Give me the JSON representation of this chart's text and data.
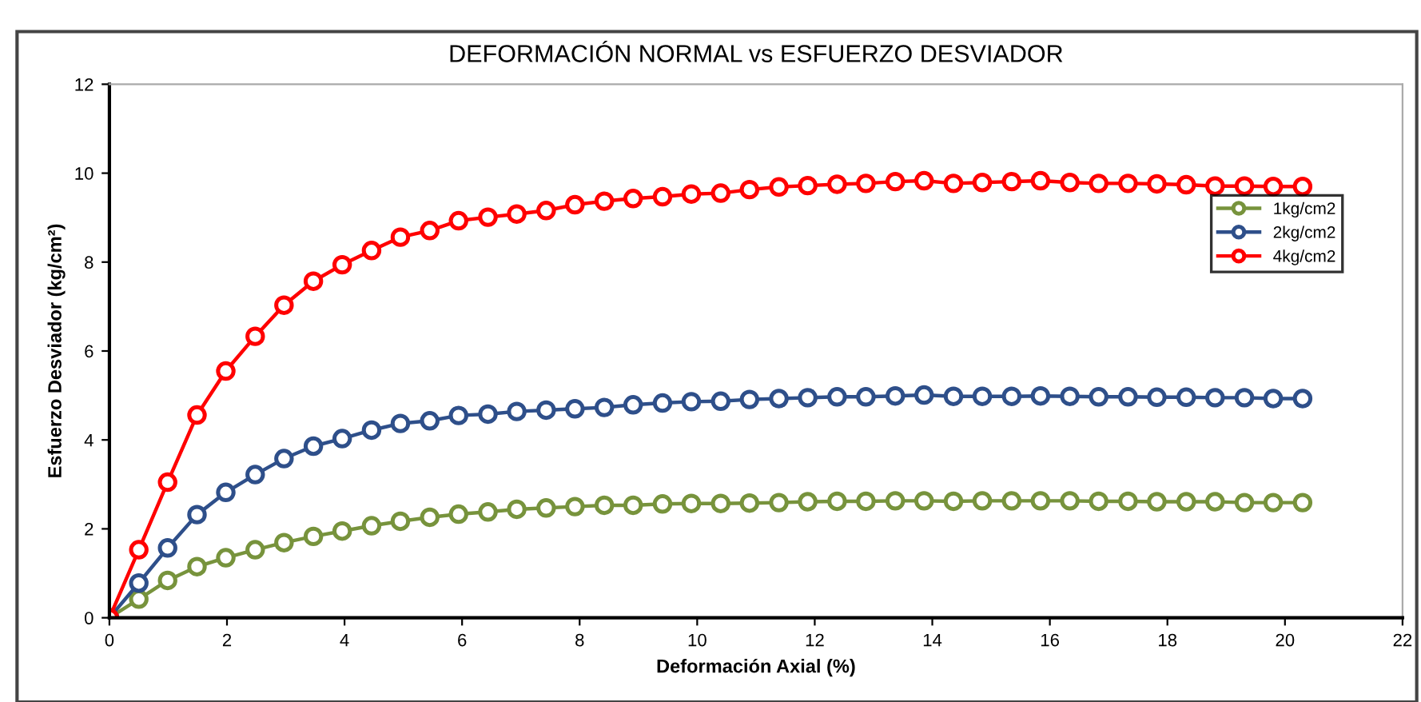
{
  "chart_data": {
    "type": "line",
    "title": "DEFORMACIÓN NORMAL vs ESFUERZO DESVIADOR",
    "xlabel": "Deformación Axial (%)",
    "ylabel": "Esfuerzo Desviador (kg/cm²)",
    "x": [
      0,
      0.5,
      0.99,
      1.49,
      1.98,
      2.48,
      2.97,
      3.47,
      3.96,
      4.46,
      4.95,
      5.45,
      5.94,
      6.44,
      6.93,
      7.43,
      7.92,
      8.42,
      8.91,
      9.41,
      9.9,
      10.4,
      10.89,
      11.39,
      11.88,
      12.38,
      12.87,
      13.37,
      13.86,
      14.36,
      14.85,
      15.35,
      15.84,
      16.34,
      16.83,
      17.33,
      17.82,
      18.32,
      18.81,
      19.31,
      19.8,
      20.3
    ],
    "series": [
      {
        "name": "1kg/cm2",
        "color": "#77933c",
        "values": [
          0,
          0.42,
          0.84,
          1.15,
          1.35,
          1.53,
          1.69,
          1.83,
          1.95,
          2.07,
          2.17,
          2.26,
          2.33,
          2.38,
          2.44,
          2.47,
          2.5,
          2.53,
          2.53,
          2.56,
          2.57,
          2.57,
          2.58,
          2.59,
          2.61,
          2.62,
          2.62,
          2.63,
          2.63,
          2.62,
          2.63,
          2.63,
          2.63,
          2.63,
          2.62,
          2.62,
          2.61,
          2.61,
          2.61,
          2.59,
          2.59,
          2.59
        ]
      },
      {
        "name": "2kg/cm2",
        "color": "#2e4f8a",
        "values": [
          0,
          0.78,
          1.57,
          2.32,
          2.82,
          3.22,
          3.58,
          3.86,
          4.03,
          4.22,
          4.37,
          4.43,
          4.55,
          4.58,
          4.64,
          4.67,
          4.7,
          4.73,
          4.79,
          4.83,
          4.86,
          4.87,
          4.91,
          4.93,
          4.95,
          4.97,
          4.97,
          4.99,
          5.01,
          4.98,
          4.98,
          4.98,
          4.99,
          4.98,
          4.97,
          4.97,
          4.96,
          4.96,
          4.95,
          4.95,
          4.93,
          4.93
        ]
      },
      {
        "name": "4kg/cm2",
        "color": "#ff0000",
        "values": [
          0,
          1.53,
          3.05,
          4.56,
          5.55,
          6.33,
          7.03,
          7.57,
          7.94,
          8.26,
          8.56,
          8.71,
          8.93,
          9.01,
          9.08,
          9.16,
          9.29,
          9.37,
          9.43,
          9.47,
          9.53,
          9.55,
          9.63,
          9.69,
          9.72,
          9.75,
          9.77,
          9.81,
          9.83,
          9.77,
          9.79,
          9.81,
          9.83,
          9.79,
          9.77,
          9.77,
          9.76,
          9.74,
          9.71,
          9.71,
          9.7,
          9.7
        ]
      }
    ],
    "xlim": [
      0,
      22
    ],
    "xticks": [
      0,
      2,
      4,
      6,
      8,
      10,
      12,
      14,
      16,
      18,
      20,
      22
    ],
    "ylim": [
      0,
      12
    ],
    "yticks": [
      0,
      2,
      4,
      6,
      8,
      10,
      12
    ],
    "grid": false,
    "legend": "right",
    "marker": "circle",
    "line_style": "solid"
  }
}
